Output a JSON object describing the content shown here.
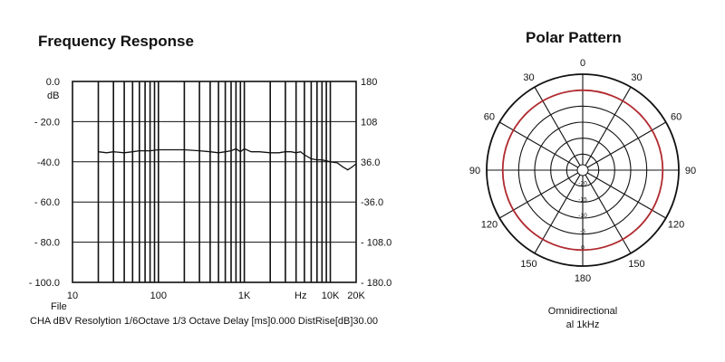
{
  "chart_data": [
    {
      "type": "line",
      "title": "Frequency Response",
      "left_axis": {
        "unit": "dB",
        "ticks": [
          {
            "value": 0,
            "label": "0.0"
          },
          {
            "value": -20,
            "label": "- 20.0"
          },
          {
            "value": -40,
            "label": "-40.0"
          },
          {
            "value": -60,
            "label": "- 60.0"
          },
          {
            "value": -80,
            "label": "- 80.0"
          },
          {
            "value": -100,
            "label": "- 100.0"
          }
        ],
        "ylim": [
          -100,
          0
        ]
      },
      "right_axis": {
        "ticks": [
          {
            "value": 180,
            "label": "180"
          },
          {
            "value": 108,
            "label": "108"
          },
          {
            "value": 36,
            "label": "36.0"
          },
          {
            "value": -36,
            "label": "-36.0"
          },
          {
            "value": -108,
            "label": "- 108.0"
          },
          {
            "value": -180,
            "label": "- 180.0"
          }
        ],
        "ylim": [
          -180,
          180
        ]
      },
      "x_axis": {
        "scale": "log",
        "xlim": [
          10,
          20000
        ],
        "ticks": [
          {
            "value": 10,
            "label": "10"
          },
          {
            "value": 100,
            "label": "100"
          },
          {
            "value": 1000,
            "label": "1K"
          },
          {
            "value": 10000,
            "label": "10K"
          },
          {
            "value": 20000,
            "label": "20K"
          }
        ],
        "unit_label": "Hz",
        "extra_label": "File"
      },
      "grid": true,
      "series": [
        {
          "x": [
            20,
            25,
            30,
            40,
            50,
            60,
            80,
            100,
            150,
            200,
            300,
            400,
            500,
            600,
            700,
            800,
            900,
            1000,
            1200,
            1500,
            2000,
            2500,
            3000,
            3500,
            4000,
            4500,
            5000,
            6000,
            7000,
            8000,
            9000,
            10000,
            12000,
            14000,
            16000,
            18000,
            20000
          ],
          "y": [
            -35,
            -35.5,
            -35,
            -35.5,
            -35,
            -34.5,
            -34.5,
            -34,
            -34,
            -34,
            -34.5,
            -35,
            -35.5,
            -35,
            -34.5,
            -33.5,
            -35,
            -33.5,
            -35,
            -35,
            -35.5,
            -35.5,
            -35,
            -35,
            -35.5,
            -35,
            -36.5,
            -38.5,
            -39,
            -39,
            -39.5,
            -40,
            -40.5,
            -42.5,
            -44,
            -42.5,
            -41
          ]
        }
      ],
      "footer": "CHA dBV Resolytion 1/6Octave 1/3 Octave Delay [ms]0.000 DistRise[dB]30.00"
    },
    {
      "type": "polar",
      "title": "Polar Pattern",
      "angle_ticks": [
        {
          "angle": 0,
          "label": "0"
        },
        {
          "angle": 30,
          "label": "30"
        },
        {
          "angle": 60,
          "label": "60"
        },
        {
          "angle": 90,
          "label": "90"
        },
        {
          "angle": 120,
          "label": "120"
        },
        {
          "angle": 150,
          "label": "150"
        },
        {
          "angle": 180,
          "label": "180"
        },
        {
          "angle": 210,
          "label": "150"
        },
        {
          "angle": 240,
          "label": "120"
        },
        {
          "angle": 270,
          "label": "90"
        },
        {
          "angle": 300,
          "label": "60"
        },
        {
          "angle": 330,
          "label": "30"
        }
      ],
      "radial_ticks": [
        {
          "value": -20,
          "label": "-20"
        },
        {
          "value": -15,
          "label": "-15"
        },
        {
          "value": -10,
          "label": "-10"
        },
        {
          "value": -5,
          "label": "-5"
        },
        {
          "value": 0,
          "label": "0"
        }
      ],
      "rlim": [
        -25,
        5
      ],
      "pattern": {
        "level_db": 0,
        "color": "#b02a30"
      },
      "caption_lines": [
        "Omnidirectional",
        "al 1kHz"
      ]
    }
  ]
}
